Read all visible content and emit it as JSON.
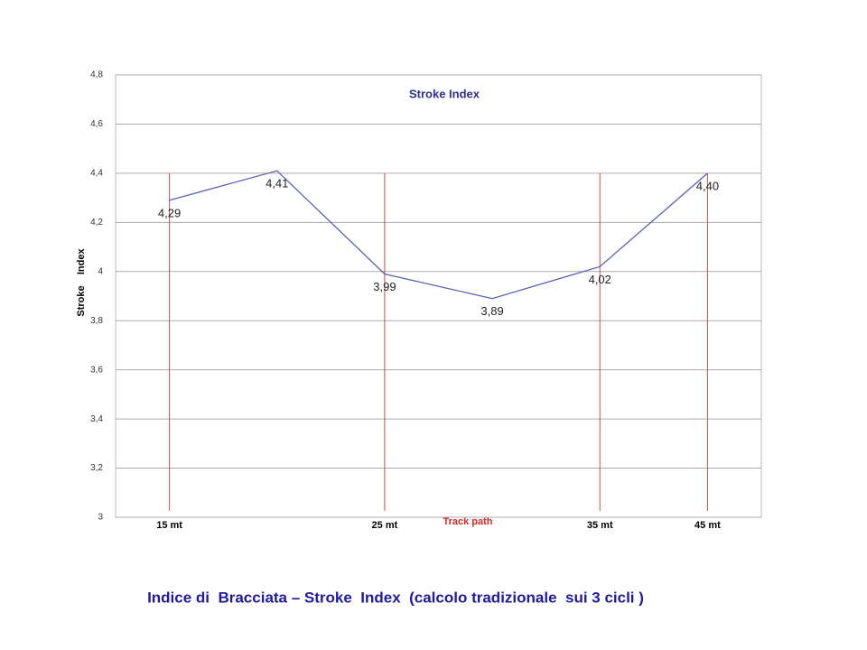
{
  "chart_data": {
    "type": "line",
    "title": "Stroke Index",
    "y_label": "Stroke    Index",
    "x_label": "Track path",
    "caption": "Indice di  Bracciata – Stroke  Index  (calcolo tradizionale  sui 3 cicli )",
    "categories": [
      "15 mt",
      null,
      "25 mt",
      null,
      "35 mt",
      "45 mt"
    ],
    "series": [
      {
        "name": "Stroke Index",
        "color": "#5b5fb5",
        "values": [
          4.29,
          4.41,
          3.99,
          3.89,
          4.02,
          4.4
        ],
        "value_labels": [
          "4,29",
          "4,41",
          "3,99",
          "3,89",
          "4,02",
          "4,40"
        ]
      }
    ],
    "ylim": [
      3,
      4.8
    ],
    "yticks": [
      3,
      {
        "value": 3.2,
        "label": "3,2"
      },
      {
        "value": 3.4,
        "label": "3,4"
      },
      {
        "value": 3.6,
        "label": "3,6"
      },
      {
        "value": 3.8,
        "label": "3,8"
      },
      4,
      {
        "value": 4.2,
        "label": "4,2"
      },
      {
        "value": 4.4,
        "label": "4,4"
      },
      {
        "value": 4.6,
        "label": "4,6"
      },
      {
        "value": 4.8,
        "label": "4,8"
      }
    ],
    "grid": true,
    "marker_color": "#c0504d"
  }
}
